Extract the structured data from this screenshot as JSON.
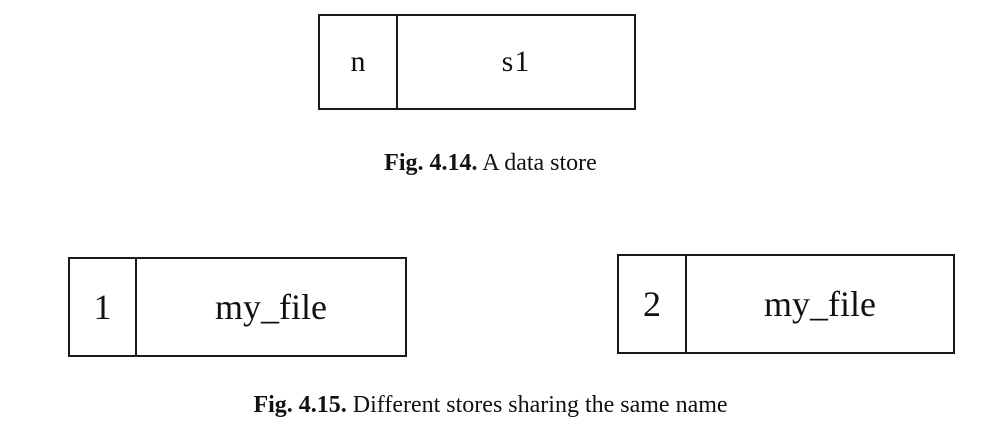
{
  "figure_14": {
    "store": {
      "id": "n",
      "name": "s1"
    },
    "caption_label": "Fig. 4.14.",
    "caption_text": "A data store"
  },
  "figure_15": {
    "stores": [
      {
        "id": "1",
        "name": "my_file"
      },
      {
        "id": "2",
        "name": "my_file"
      }
    ],
    "caption_label": "Fig. 4.15.",
    "caption_text": "Different stores sharing the same name"
  }
}
